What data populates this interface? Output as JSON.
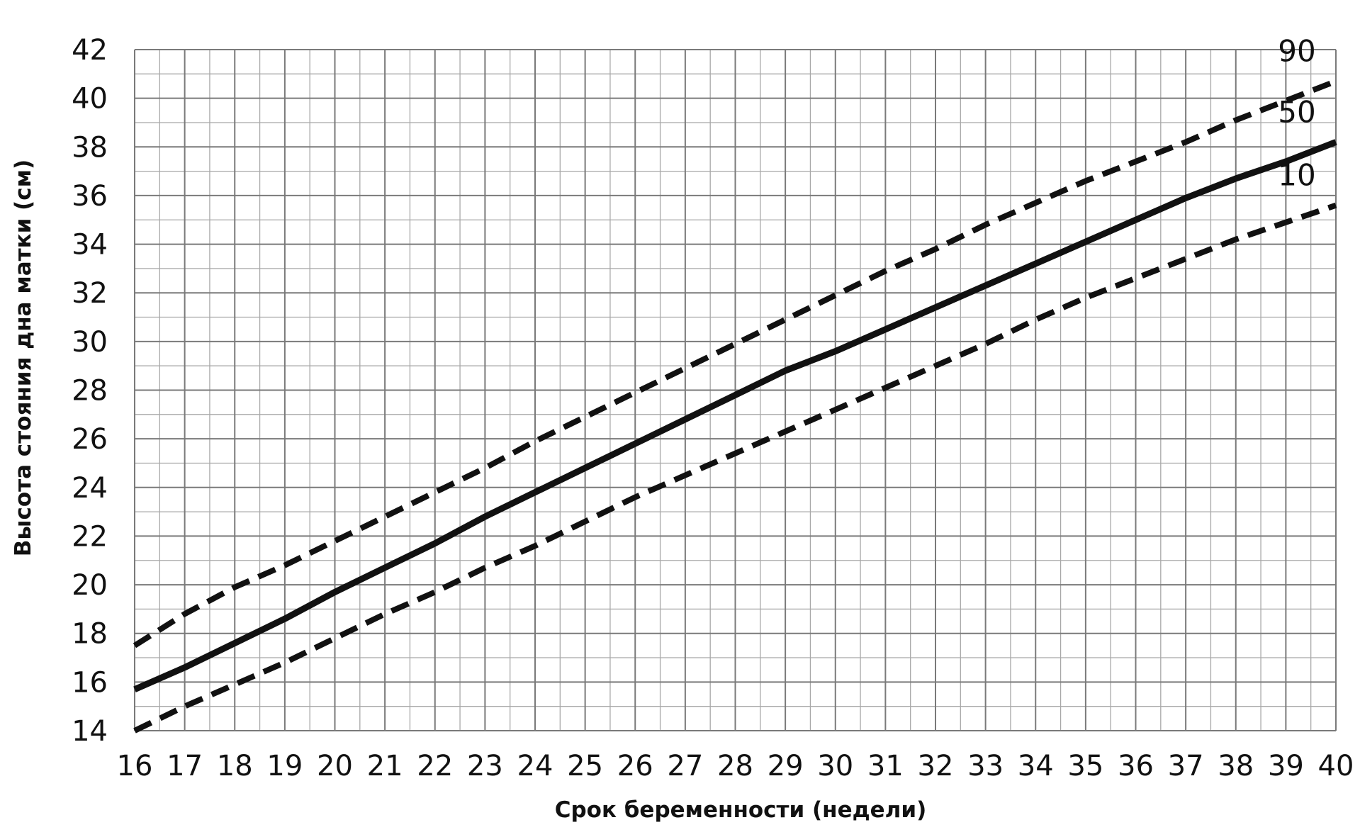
{
  "chart_data": {
    "type": "line",
    "title": "",
    "xlabel": "Срок беременности (недели)",
    "ylabel": "Высота стояния дна матки (см)",
    "xlim": [
      16,
      40
    ],
    "ylim": [
      14,
      42
    ],
    "x_ticks": [
      16,
      17,
      18,
      19,
      20,
      21,
      22,
      23,
      24,
      25,
      26,
      27,
      28,
      29,
      30,
      31,
      32,
      33,
      34,
      35,
      36,
      37,
      38,
      39,
      40
    ],
    "y_ticks": [
      14,
      16,
      18,
      20,
      22,
      24,
      26,
      28,
      30,
      32,
      34,
      36,
      38,
      40,
      42
    ],
    "grid": true,
    "x": [
      16,
      17,
      18,
      19,
      20,
      21,
      22,
      23,
      24,
      25,
      26,
      27,
      28,
      29,
      30,
      31,
      32,
      33,
      34,
      35,
      36,
      37,
      38,
      39,
      40
    ],
    "series": [
      {
        "name": "90",
        "style": "dashed",
        "values": [
          17.5,
          18.8,
          19.9,
          20.8,
          21.8,
          22.8,
          23.8,
          24.8,
          25.9,
          26.9,
          27.9,
          28.9,
          29.9,
          30.9,
          31.9,
          32.9,
          33.8,
          34.8,
          35.7,
          36.6,
          37.4,
          38.2,
          39.1,
          39.9,
          40.7
        ]
      },
      {
        "name": "50",
        "style": "solid",
        "values": [
          15.7,
          16.6,
          17.6,
          18.6,
          19.7,
          20.7,
          21.7,
          22.8,
          23.8,
          24.8,
          25.8,
          26.8,
          27.8,
          28.8,
          29.6,
          30.5,
          31.4,
          32.3,
          33.2,
          34.1,
          35.0,
          35.9,
          36.7,
          37.4,
          38.2
        ]
      },
      {
        "name": "10",
        "style": "dashed",
        "values": [
          14.0,
          15.0,
          15.9,
          16.8,
          17.8,
          18.8,
          19.7,
          20.7,
          21.6,
          22.6,
          23.6,
          24.5,
          25.4,
          26.3,
          27.2,
          28.1,
          29.0,
          29.9,
          30.9,
          31.8,
          32.6,
          33.4,
          34.2,
          34.9,
          35.6
        ]
      }
    ]
  }
}
